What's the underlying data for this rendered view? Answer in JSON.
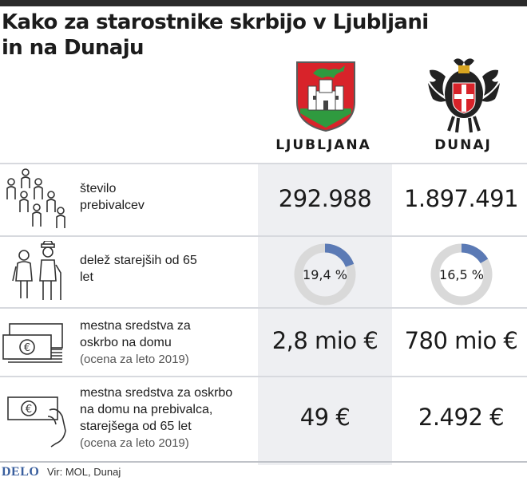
{
  "title": "Kako za starostnike skrbijo v Ljubljani in na Dunaju",
  "columns": {
    "ljubljana": "LJUBLJANA",
    "dunaj": "DUNAJ"
  },
  "rows": [
    {
      "icon": "people-group-icon",
      "label": "število prebivalcev",
      "ljubljana": "292.988",
      "dunaj": "1.897.491"
    },
    {
      "icon": "elderly-couple-icon",
      "label": "delež starejših od 65 let",
      "ljubljana": "19,4 %",
      "dunaj": "16,5 %",
      "ljubljana_share": 19.4,
      "dunaj_share": 16.5
    },
    {
      "icon": "banknotes-stack-icon",
      "label": "mestna sredstva za oskrbo na domu",
      "note": "(ocena za leto 2019)",
      "ljubljana": "2,8 mio €",
      "dunaj": "780 mio €"
    },
    {
      "icon": "hand-holding-euro-icon",
      "label": "mestna sredstva za oskrbo na domu na prebivalca, starejšega od 65 let",
      "note": "(ocena za leto 2019)",
      "ljubljana": "49 €",
      "dunaj": "2.492 €"
    }
  ],
  "footer": {
    "logo": "DELO",
    "source": "Vir: MOL, Dunaj"
  },
  "colors": {
    "donut_fill": "#5b7ab5",
    "donut_track": "#d9d9d9",
    "lj_column_bg": "#eeeff2",
    "logo": "#3a5f9e"
  }
}
